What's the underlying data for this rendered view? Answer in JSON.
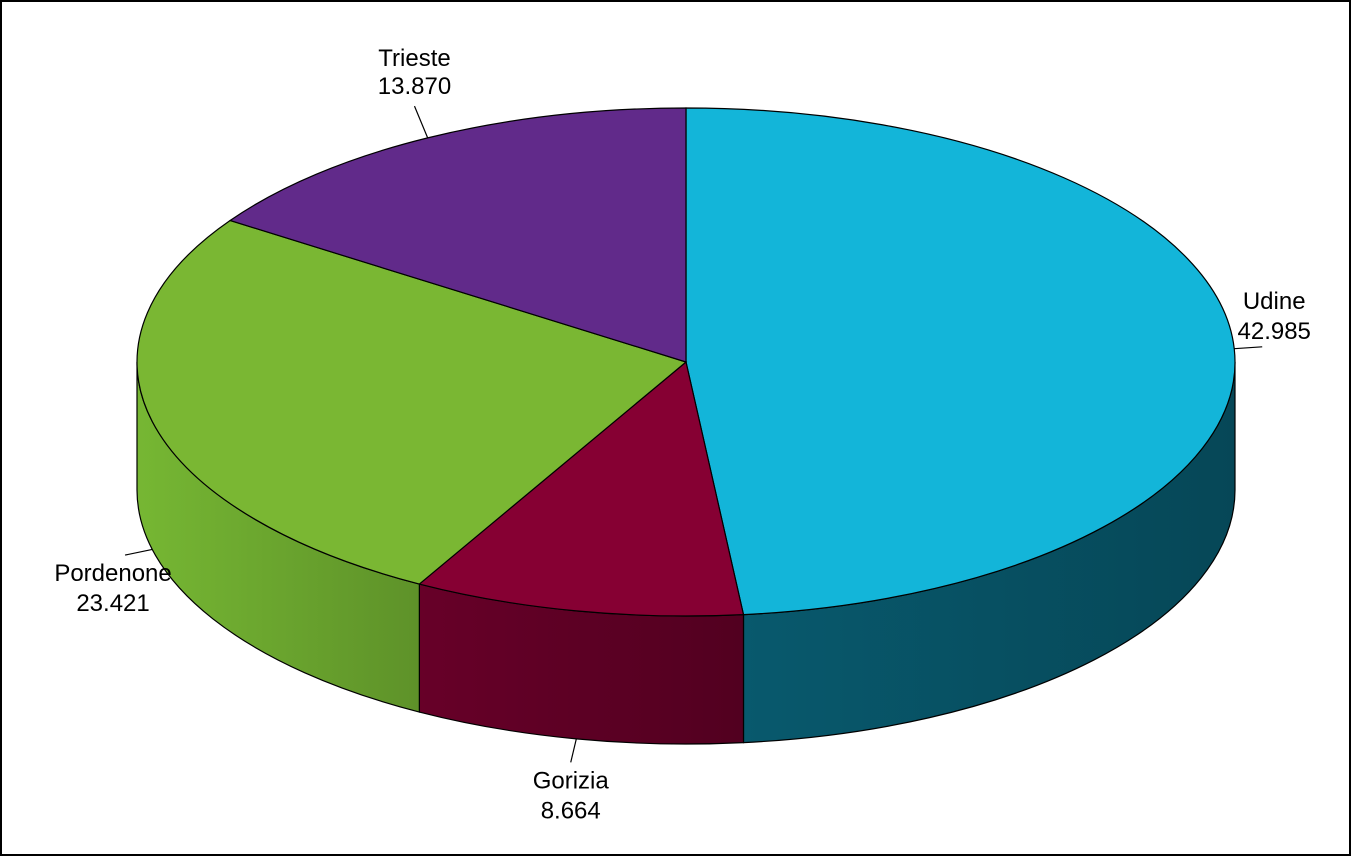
{
  "chart_data": {
    "type": "pie",
    "variant": "3d",
    "title": "",
    "start_angle_deg": 90,
    "direction": "clockwise",
    "slices": [
      {
        "label": "Udine",
        "value": 42.985,
        "value_label": "42.985",
        "color": "#13b5d9",
        "side_color": "#064757"
      },
      {
        "label": "Gorizia",
        "value": 8.664,
        "value_label": "8.664",
        "color": "#860033",
        "side_color": "#520020"
      },
      {
        "label": "Pordenone",
        "value": 23.421,
        "value_label": "23.421",
        "color": "#7ab733",
        "side_color": "#5e9229"
      },
      {
        "label": "Trieste",
        "value": 13.87,
        "value_label": "13.870",
        "color": "#612a8a",
        "side_color": "#3e1b5a"
      }
    ]
  }
}
